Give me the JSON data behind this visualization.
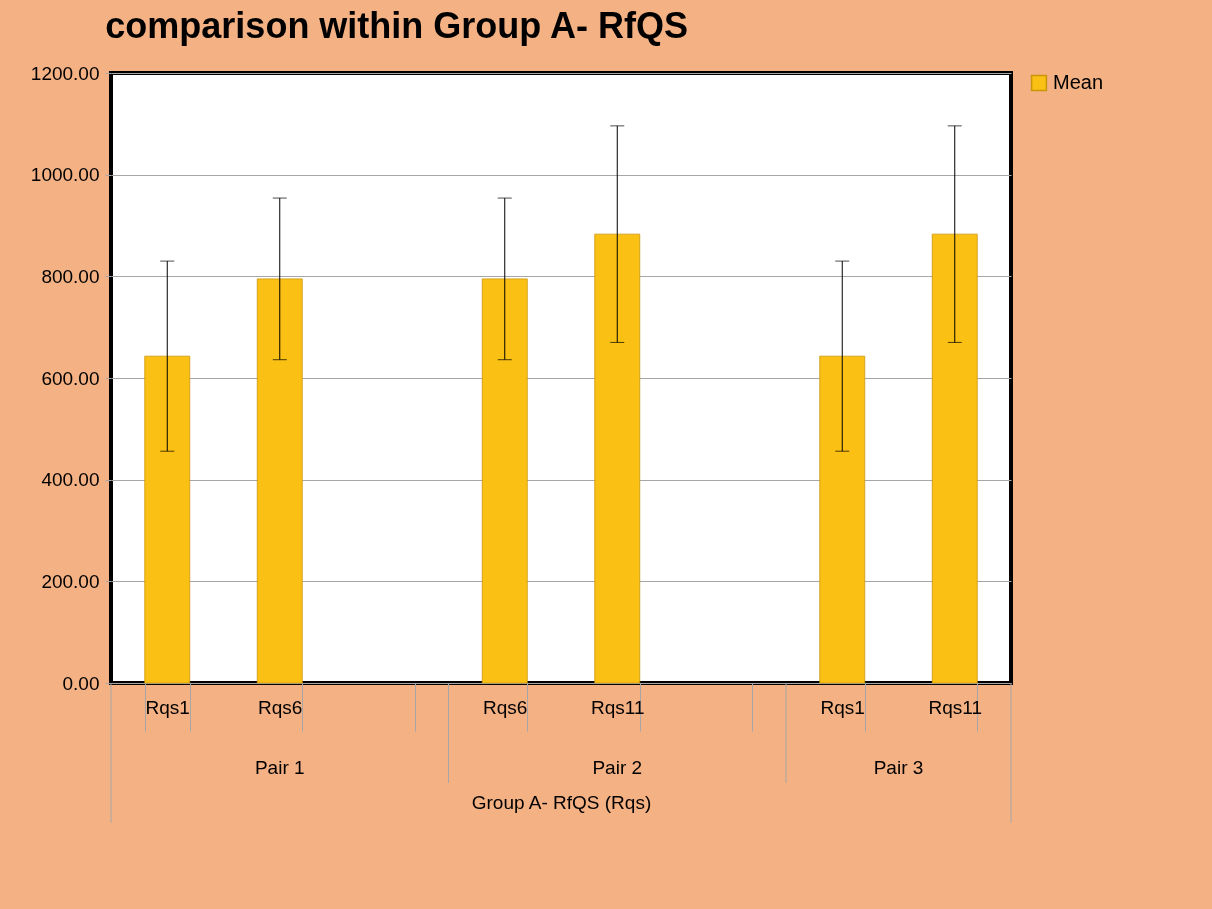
{
  "chart_data": {
    "type": "bar",
    "title": "comparison within Group A- RfQS",
    "xlabel": "Group A- RfQS (Rqs)",
    "categories": [
      "Rqs1",
      "Rqs6",
      null,
      "Rqs6",
      "Rqs11",
      null,
      "Rqs1",
      "Rqs11"
    ],
    "series": [
      {
        "name": "Mean",
        "color": "#fbc014",
        "values": [
          643,
          795,
          null,
          795,
          883,
          null,
          643,
          883
        ],
        "errors": [
          187,
          159,
          null,
          159,
          213,
          null,
          187,
          213
        ]
      }
    ],
    "annotations": [
      "Pair 1",
      "Pair 2",
      "Pair 3"
    ],
    "ylim": [
      0,
      1200
    ],
    "yticks": [
      {
        "value": 0,
        "label": "0.00"
      },
      {
        "value": 200,
        "label": "200.00"
      },
      {
        "value": 400,
        "label": "400.00"
      },
      {
        "value": 600,
        "label": "600.00"
      },
      {
        "value": 800,
        "label": "800.00"
      },
      {
        "value": 1000,
        "label": "1000.00"
      },
      {
        "value": 1200,
        "label": "1200.00"
      }
    ],
    "grid": true,
    "legend": "right"
  }
}
